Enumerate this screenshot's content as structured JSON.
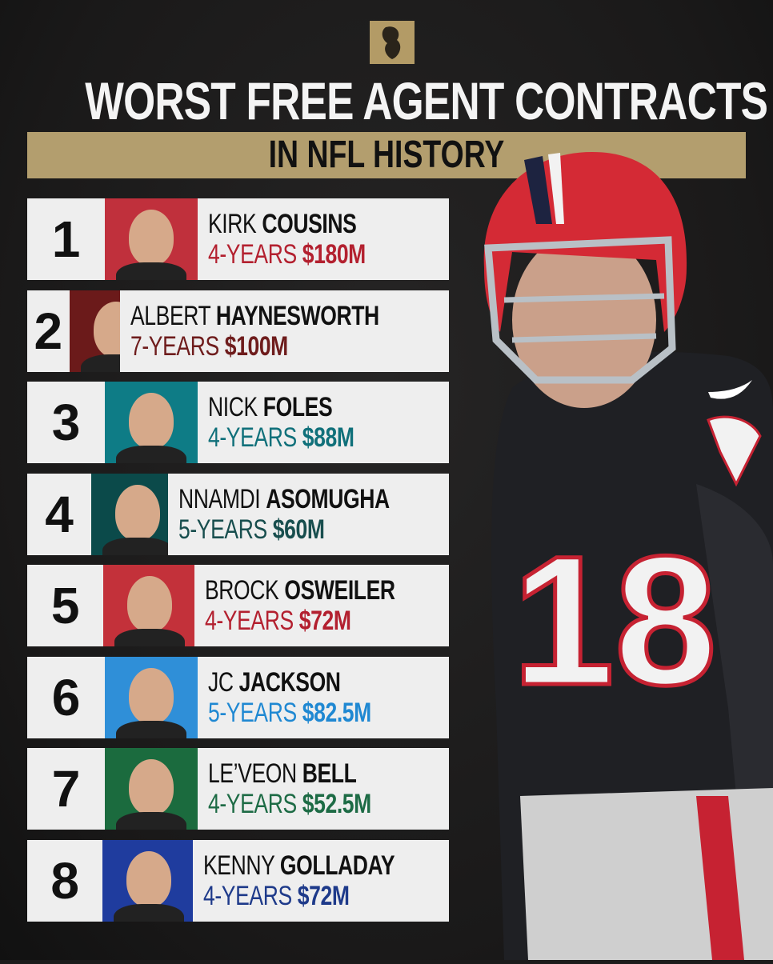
{
  "header": {
    "title": "WORST FREE AGENT CONTRACTS",
    "subtitle": "IN NFL HISTORY",
    "logo": "lion-logo"
  },
  "rows": [
    {
      "rank": "1",
      "first": "KIRK",
      "last": "COUSINS",
      "years": "4-YEARS",
      "amount": "$180M",
      "color": "#b3202f",
      "photo_bg": "#c0303c"
    },
    {
      "rank": "2",
      "first": "ALBERT",
      "last": "HAYNESWORTH",
      "years": "7-YEARS",
      "amount": "$100M",
      "color": "#6e1c1c",
      "photo_bg": "#6b1a1a"
    },
    {
      "rank": "3",
      "first": "NICK",
      "last": "FOLES",
      "years": "4-YEARS",
      "amount": "$88M",
      "color": "#10707a",
      "photo_bg": "#0e7c86"
    },
    {
      "rank": "4",
      "first": "NNAMDI",
      "last": "ASOMUGHA",
      "years": "5-YEARS",
      "amount": "$60M",
      "color": "#184e4e",
      "photo_bg": "#0b4a4a"
    },
    {
      "rank": "5",
      "first": "BROCK",
      "last": "OSWEILER",
      "years": "4-YEARS",
      "amount": "$72M",
      "color": "#b3202f",
      "photo_bg": "#c3313a"
    },
    {
      "rank": "6",
      "first": "JC",
      "last": "JACKSON",
      "years": "5-YEARS",
      "amount": "$82.5M",
      "color": "#1f88d2",
      "photo_bg": "#2f8fd8"
    },
    {
      "rank": "7",
      "first": "LE’VEON",
      "last": "BELL",
      "years": "4-YEARS",
      "amount": "$52.5M",
      "color": "#1d6b45",
      "photo_bg": "#1b6b3e"
    },
    {
      "rank": "8",
      "first": "KENNY",
      "last": "GOLLADAY",
      "years": "4-YEARS",
      "amount": "$72M",
      "color": "#1e3a8a",
      "photo_bg": "#1f3c9e"
    }
  ],
  "hero": {
    "jersey_number": "18"
  }
}
